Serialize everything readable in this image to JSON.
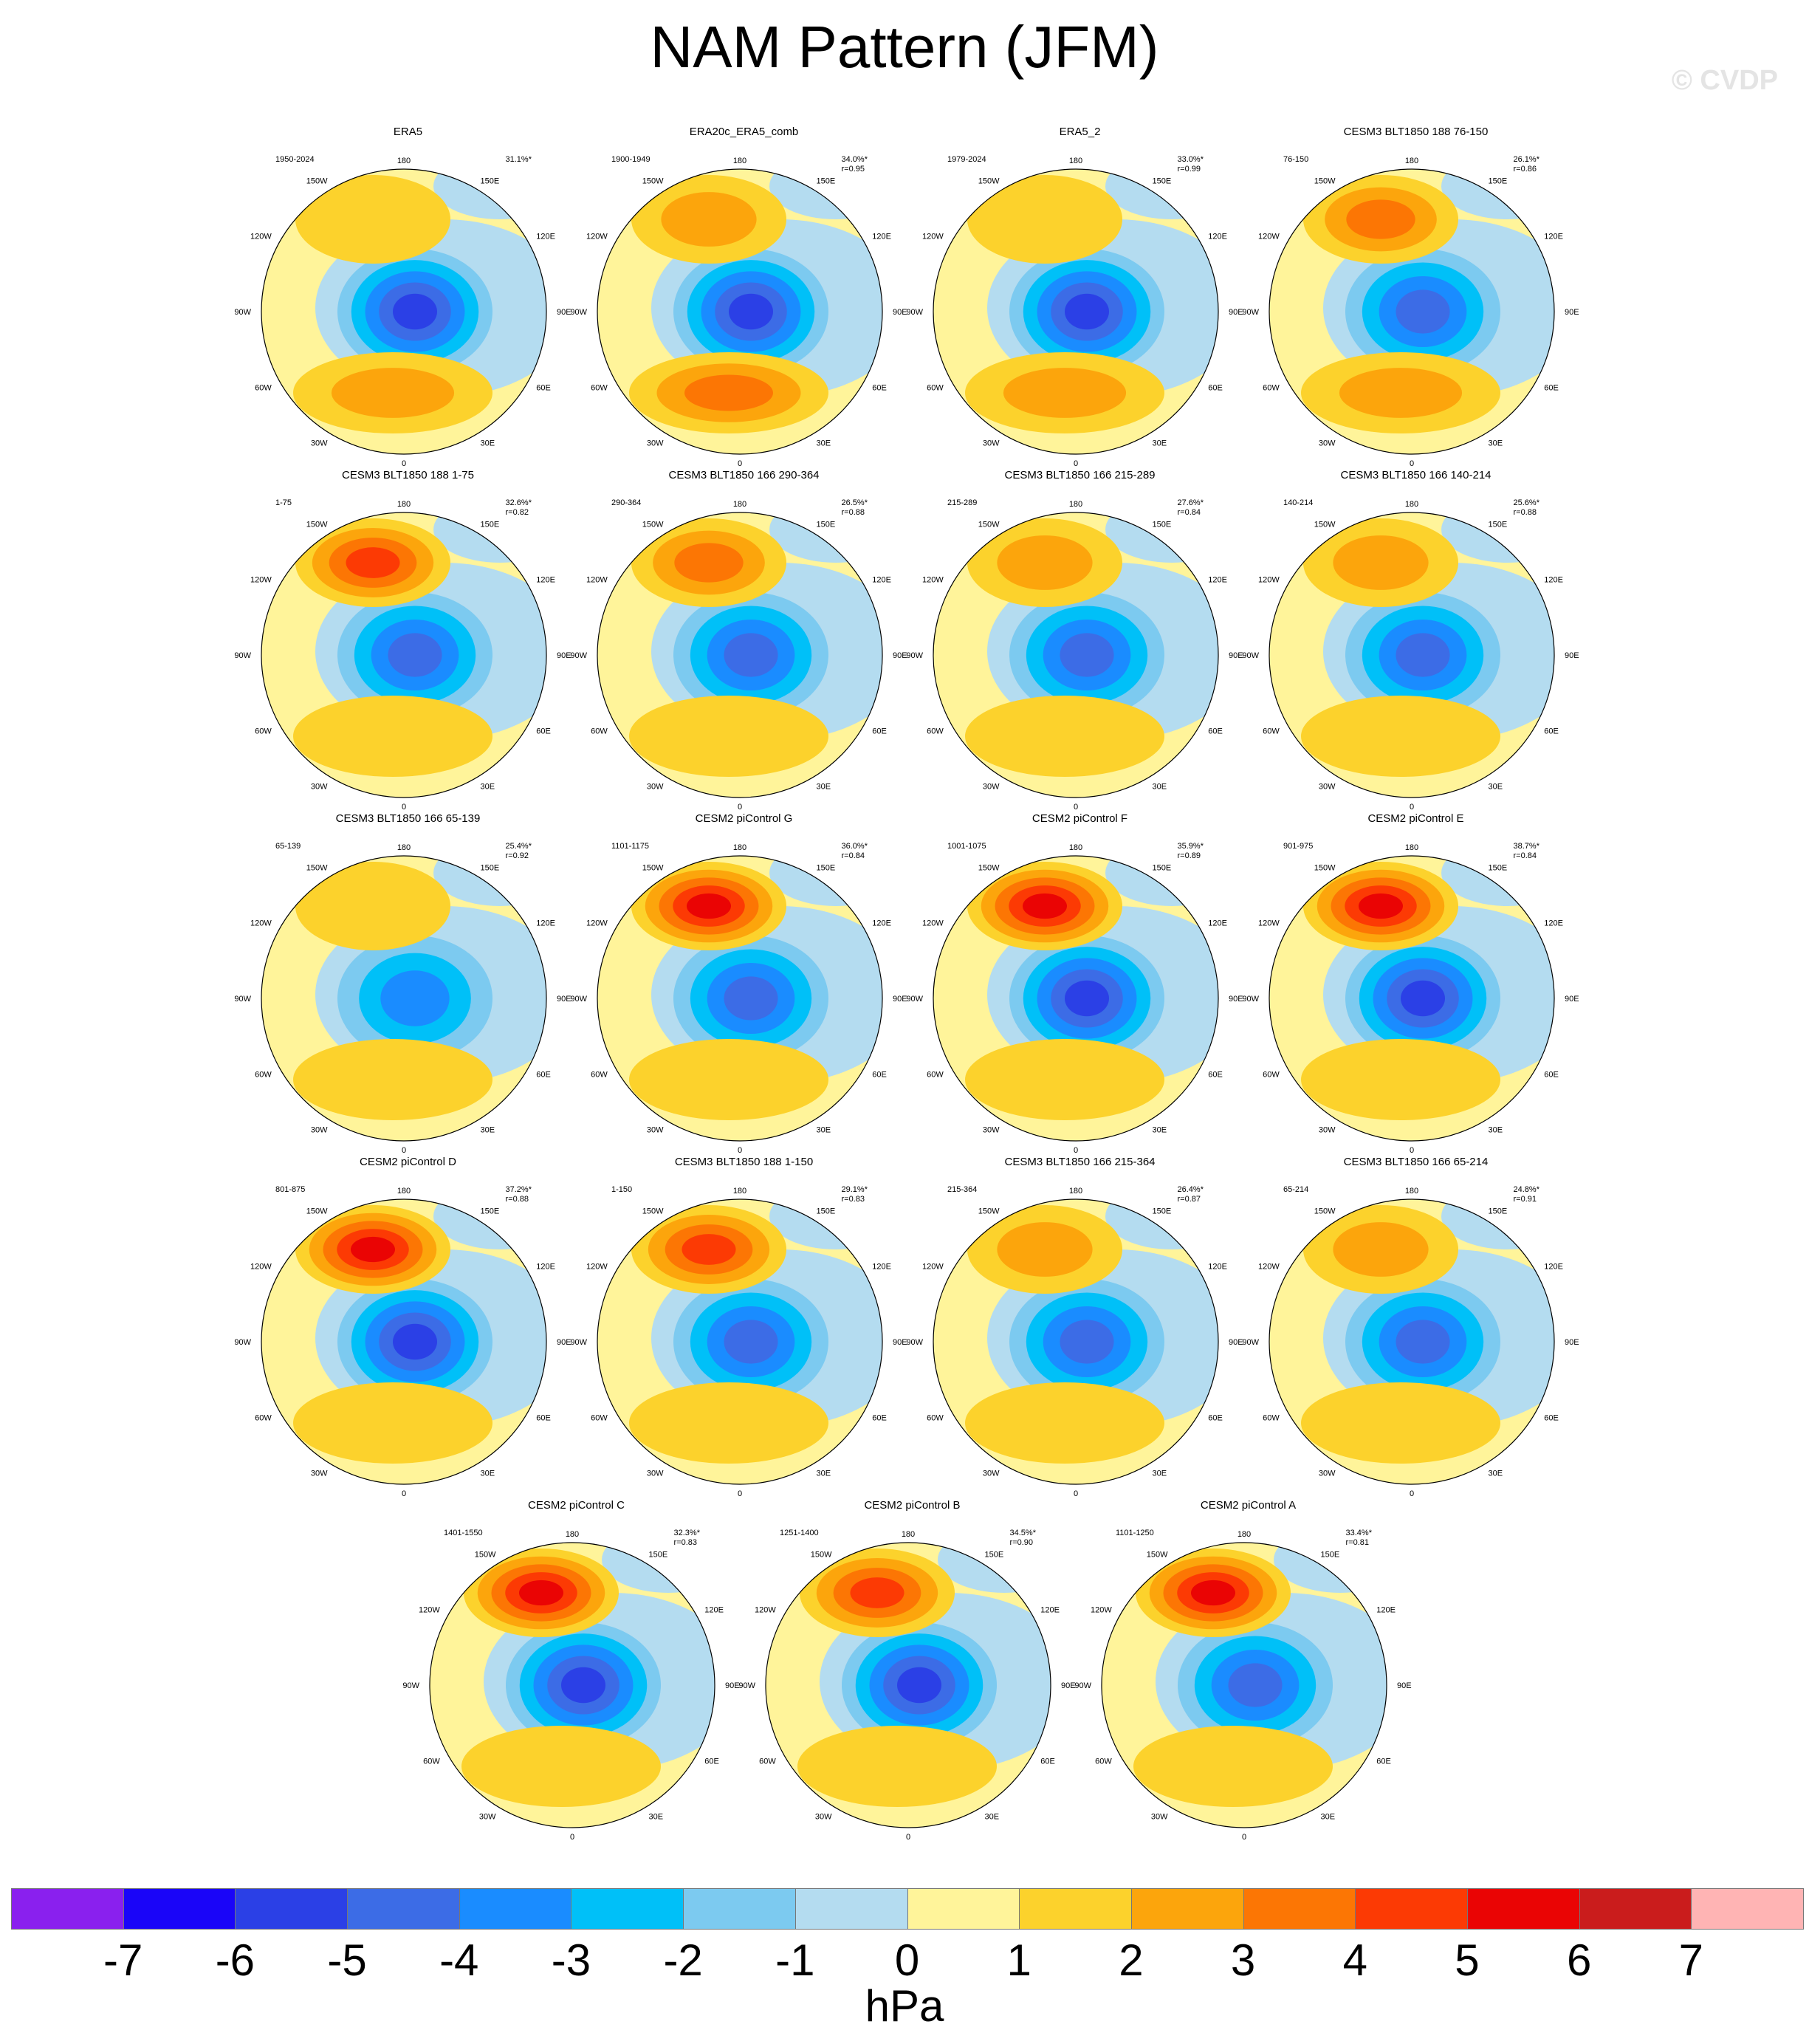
{
  "title": "NAM Pattern (JFM)",
  "watermark": "© CVDP",
  "colorbar": {
    "units": "hPa",
    "ticks": [
      "-7",
      "-6",
      "-5",
      "-4",
      "-3",
      "-2",
      "-1",
      "0",
      "1",
      "2",
      "3",
      "4",
      "5",
      "6",
      "7"
    ],
    "colors": [
      "#8a20ee",
      "#1a05f8",
      "#2b40e6",
      "#3c6ce6",
      "#1a8cff",
      "#00c0f8",
      "#7ccaf0",
      "#b4dcf0",
      "#fff49a",
      "#fcd22c",
      "#fca50c",
      "#fc7604",
      "#fc3a04",
      "#ea0404",
      "#ca1c1c",
      "#ffb4b4"
    ]
  },
  "chart_data": {
    "type": "polar-contour-map",
    "variable": "NAM Pattern (JFM)",
    "units": "hPa",
    "levels": [
      -7,
      -6,
      -5,
      -4,
      -3,
      -2,
      -1,
      0,
      1,
      2,
      3,
      4,
      5,
      6,
      7
    ],
    "longitude_labels": [
      "180",
      "150E",
      "120E",
      "90E",
      "60E",
      "30E",
      "0",
      "30W",
      "60W",
      "90W",
      "120W",
      "150W"
    ],
    "panels": [
      {
        "name": "ERA5",
        "period": "1950-2024",
        "pct": "31.1%*",
        "r": "",
        "arctic_min": -5.5,
        "pacific_max": 1.5,
        "atlantic_max": 2.5
      },
      {
        "name": "ERA20c_ERA5_comb",
        "period": "1900-1949",
        "pct": "34.0%*",
        "r": "r=0.95",
        "arctic_min": -5.5,
        "pacific_max": 2.5,
        "atlantic_max": 3.5
      },
      {
        "name": "ERA5_2",
        "period": "1979-2024",
        "pct": "33.0%*",
        "r": "r=0.99",
        "arctic_min": -5.5,
        "pacific_max": 1.5,
        "atlantic_max": 2.5
      },
      {
        "name": "CESM3 BLT1850 188 76-150",
        "period": "76-150",
        "pct": "26.1%*",
        "r": "r=0.86",
        "arctic_min": -4.5,
        "pacific_max": 3.5,
        "atlantic_max": 2.5
      },
      {
        "name": "CESM3 BLT1850 188 1-75",
        "period": "1-75",
        "pct": "32.6%*",
        "r": "r=0.82",
        "arctic_min": -4.5,
        "pacific_max": 4.5,
        "atlantic_max": 1.5
      },
      {
        "name": "CESM3 BLT1850 166 290-364",
        "period": "290-364",
        "pct": "26.5%*",
        "r": "r=0.88",
        "arctic_min": -4.5,
        "pacific_max": 3.5,
        "atlantic_max": 1.5
      },
      {
        "name": "CESM3 BLT1850 166 215-289",
        "period": "215-289",
        "pct": "27.6%*",
        "r": "r=0.84",
        "arctic_min": -4.5,
        "pacific_max": 2.5,
        "atlantic_max": 1.5
      },
      {
        "name": "CESM3 BLT1850 166 140-214",
        "period": "140-214",
        "pct": "25.6%*",
        "r": "r=0.88",
        "arctic_min": -4.5,
        "pacific_max": 2.5,
        "atlantic_max": 1.5
      },
      {
        "name": "CESM3 BLT1850 166 65-139",
        "period": "65-139",
        "pct": "25.4%*",
        "r": "r=0.92",
        "arctic_min": -3.5,
        "pacific_max": 1.5,
        "atlantic_max": 1.5
      },
      {
        "name": "CESM2 piControl G",
        "period": "1101-1175",
        "pct": "36.0%*",
        "r": "r=0.84",
        "arctic_min": -4.5,
        "pacific_max": 5.5,
        "atlantic_max": 1.5
      },
      {
        "name": "CESM2 piControl F",
        "period": "1001-1075",
        "pct": "35.9%*",
        "r": "r=0.89",
        "arctic_min": -5.5,
        "pacific_max": 5.5,
        "atlantic_max": 1.5
      },
      {
        "name": "CESM2 piControl E",
        "period": "901-975",
        "pct": "38.7%*",
        "r": "r=0.84",
        "arctic_min": -5.5,
        "pacific_max": 5.5,
        "atlantic_max": 1.5
      },
      {
        "name": "CESM2 piControl D",
        "period": "801-875",
        "pct": "37.2%*",
        "r": "r=0.88",
        "arctic_min": -5.5,
        "pacific_max": 5.5,
        "atlantic_max": 1.5
      },
      {
        "name": "CESM3 BLT1850 188 1-150",
        "period": "1-150",
        "pct": "29.1%*",
        "r": "r=0.83",
        "arctic_min": -4.5,
        "pacific_max": 4.5,
        "atlantic_max": 1.5
      },
      {
        "name": "CESM3 BLT1850 166 215-364",
        "period": "215-364",
        "pct": "26.4%*",
        "r": "r=0.87",
        "arctic_min": -4.5,
        "pacific_max": 2.5,
        "atlantic_max": 1.5
      },
      {
        "name": "CESM3 BLT1850 166 65-214",
        "period": "65-214",
        "pct": "24.8%*",
        "r": "r=0.91",
        "arctic_min": -4.5,
        "pacific_max": 2.5,
        "atlantic_max": 1.5
      },
      {
        "name": "CESM2 piControl C",
        "period": "1401-1550",
        "pct": "32.3%*",
        "r": "r=0.83",
        "arctic_min": -5.5,
        "pacific_max": 5.5,
        "atlantic_max": 1.5
      },
      {
        "name": "CESM2 piControl B",
        "period": "1251-1400",
        "pct": "34.5%*",
        "r": "r=0.90",
        "arctic_min": -5.5,
        "pacific_max": 4.5,
        "atlantic_max": 1.5
      },
      {
        "name": "CESM2 piControl A",
        "period": "1101-1250",
        "pct": "33.4%*",
        "r": "r=0.81",
        "arctic_min": -4.5,
        "pacific_max": 5.5,
        "atlantic_max": 1.5
      }
    ]
  }
}
